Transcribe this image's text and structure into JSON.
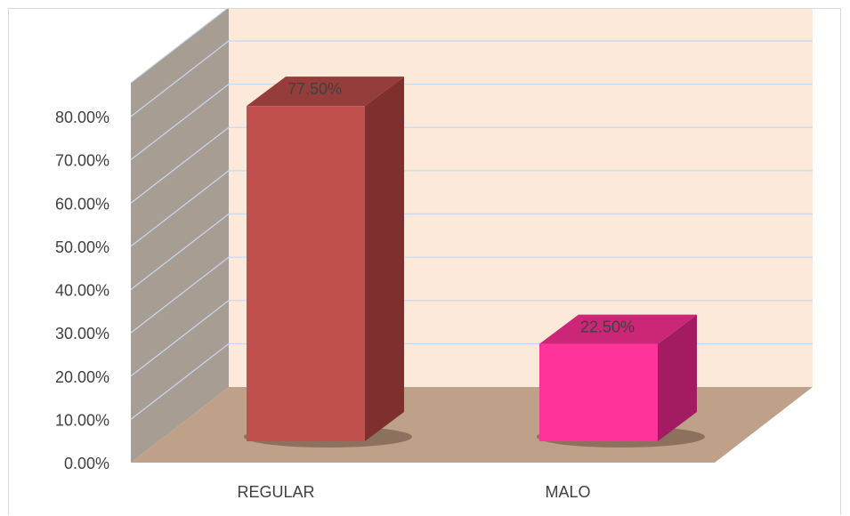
{
  "chart_data": {
    "type": "bar",
    "style": "3d-column",
    "categories": [
      "REGULAR",
      "MALO"
    ],
    "values": [
      0.775,
      0.225
    ],
    "data_labels": [
      "77.50%",
      "22.50%"
    ],
    "ylim": [
      0,
      0.8
    ],
    "yticks": [
      0,
      0.1,
      0.2,
      0.3,
      0.4,
      0.5,
      0.6,
      0.7,
      0.8
    ],
    "ytick_labels": [
      "0.00%",
      "10.00%",
      "20.00%",
      "30.00%",
      "40.00%",
      "50.00%",
      "60.00%",
      "70.00%",
      "80.00%"
    ],
    "title": "",
    "xlabel": "",
    "ylabel": "",
    "grid": true,
    "legend": "none",
    "colors": {
      "bars": [
        "#c0504d",
        "#ff3399"
      ],
      "bars_side": [
        "#7f2f2d",
        "#a31c63"
      ],
      "bars_top": [
        "#943d3a",
        "#cc2678"
      ],
      "back_wall": "#fde9d9",
      "side_wall": "#a89d93",
      "floor": "#bfa088",
      "gridline": "#c6d9f1"
    }
  }
}
